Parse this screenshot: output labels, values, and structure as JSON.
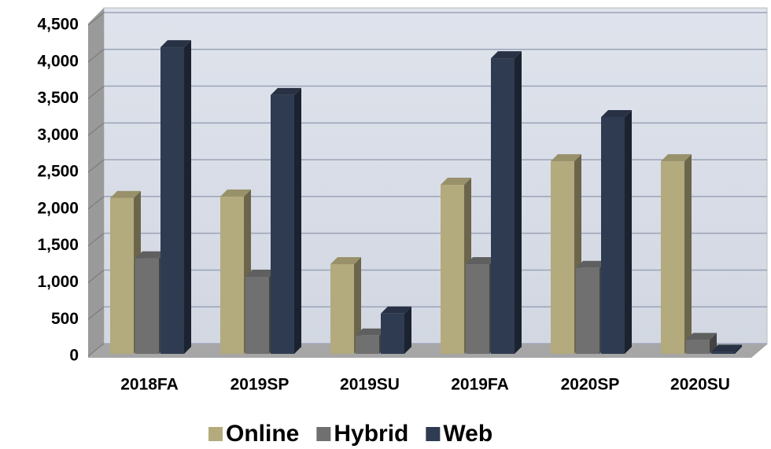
{
  "chart_data": {
    "type": "bar3d",
    "categories": [
      "2018FA",
      "2019SP",
      "2019SU",
      "2019FA",
      "2020SP",
      "2020SU"
    ],
    "series": [
      {
        "name": "Online",
        "color": "#b3aa7d",
        "values": [
          2150,
          2170,
          1250,
          2330,
          2650,
          2650
        ]
      },
      {
        "name": "Hybrid",
        "color": "#707070",
        "values": [
          1330,
          1080,
          280,
          1250,
          1200,
          220
        ]
      },
      {
        "name": "Web",
        "color": "#2f3b50",
        "values": [
          4200,
          3550,
          580,
          4050,
          3250,
          60
        ]
      }
    ],
    "ylim": [
      0,
      4500
    ],
    "yticks": [
      0,
      {
        "value": 500,
        "label": "500"
      },
      {
        "value": 1000,
        "label": "1,000"
      },
      {
        "value": 1500,
        "label": "1,500"
      },
      {
        "value": 2000,
        "label": "2,000"
      },
      {
        "value": 2500,
        "label": "2,500"
      },
      {
        "value": 3000,
        "label": "3,000"
      },
      {
        "value": 3500,
        "label": "3,500"
      },
      {
        "value": 4000,
        "label": "4,000"
      },
      {
        "value": 4500,
        "label": "4,500"
      }
    ],
    "grid": true,
    "legend": "bottom"
  }
}
